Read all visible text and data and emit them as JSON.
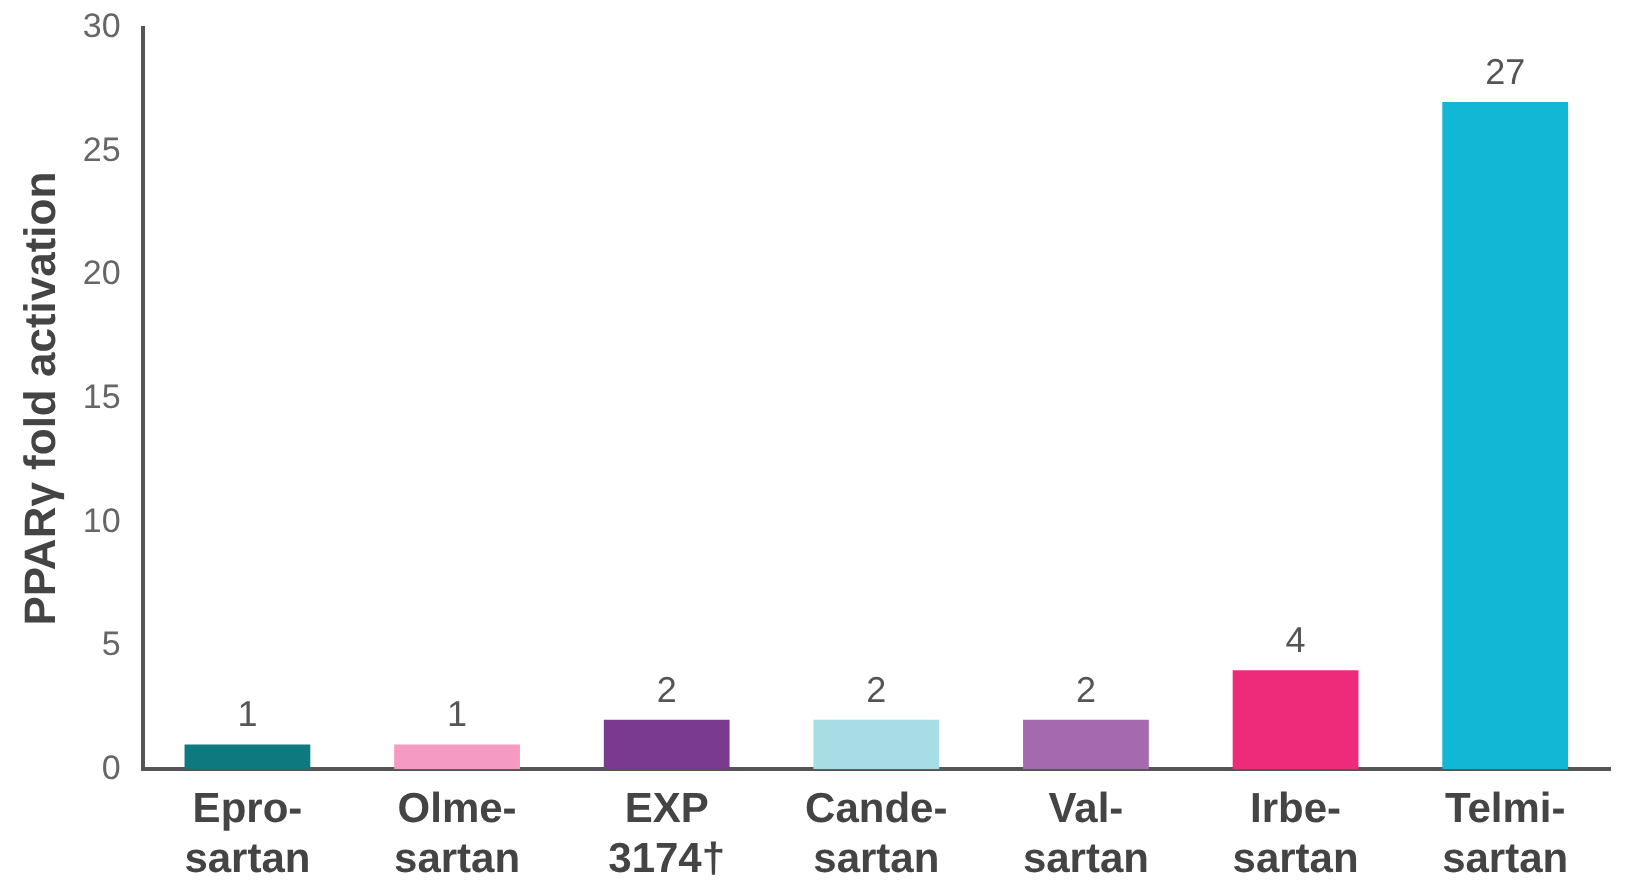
{
  "chart_data": {
    "type": "bar",
    "ylabel": "PPARγ fold activation",
    "categories": [
      "Epro-\nsartan",
      "Olme-\nsartan",
      "EXP\n3174†",
      "Cande-\nsartan",
      "Val-\nsartan",
      "Irbe-\nsartan",
      "Telmi-\nsartan"
    ],
    "values": [
      1,
      1,
      2,
      2,
      2,
      4,
      27
    ],
    "colors": [
      "#0e7a80",
      "#f59ac0",
      "#7a3a8e",
      "#a8dde6",
      "#a569b0",
      "#ee2a7b",
      "#10b8d6"
    ],
    "ylim": [
      0,
      30
    ],
    "yticks": [
      0,
      5,
      10,
      15,
      20,
      25,
      30
    ],
    "grid": false,
    "legend": false,
    "data_labels": true
  }
}
